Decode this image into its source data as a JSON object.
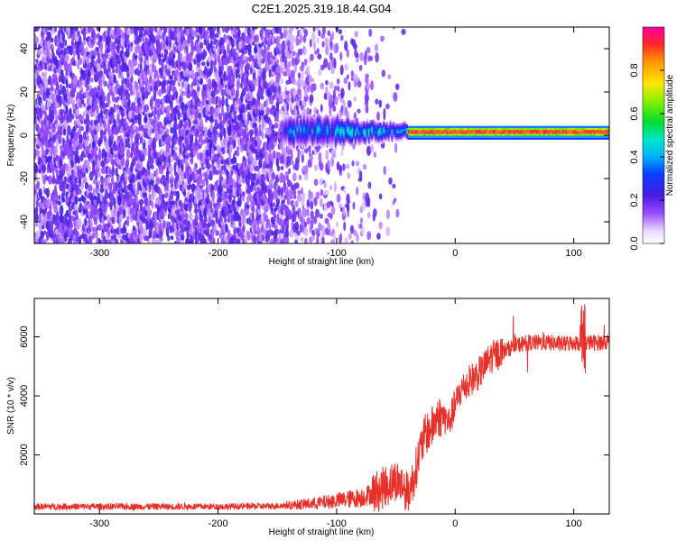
{
  "title": "C2E1.2025.319.18.44.G04",
  "chart_data": [
    {
      "type": "heatmap",
      "panel": "top",
      "xlabel": "Height of straight line (km)",
      "ylabel": "Frequency (Hz)",
      "xlim": [
        -355,
        130
      ],
      "ylim": [
        -50,
        50
      ],
      "xticks": [
        -300,
        -200,
        -100,
        0,
        100
      ],
      "yticks": [
        -40,
        -20,
        0,
        20,
        40
      ],
      "description_of_regions": [
        {
          "x_range": [
            -355,
            -140
          ],
          "pattern": "broadband noise, blue-violet, all frequencies",
          "amplitude": [
            0.05,
            0.3
          ]
        },
        {
          "x_range": [
            -140,
            -50
          ],
          "pattern": "noise fading, signal band near 0 Hz emerging",
          "amplitude": [
            0.05,
            0.45
          ]
        },
        {
          "x_range": [
            -50,
            130
          ],
          "pattern": "narrow carrier line near 0-2 Hz",
          "amplitude": [
            0.5,
            0.95
          ]
        }
      ],
      "colorbar": {
        "label": "Normalized spectral amplitude",
        "range": [
          0,
          1
        ],
        "ticks": [
          0.0,
          0.2,
          0.4,
          0.6,
          0.8
        ]
      }
    },
    {
      "type": "line",
      "panel": "bottom",
      "xlabel": "Height of straight line (km)",
      "ylabel": "SNR (10 * v/v)",
      "xlim": [
        -355,
        130
      ],
      "ylim": [
        0,
        7300
      ],
      "xticks": [
        -300,
        -200,
        -100,
        0,
        100
      ],
      "yticks": [
        2000,
        4000,
        6000
      ],
      "color": "#e8302a",
      "series": [
        {
          "name": "SNR",
          "x": [
            -355,
            -300,
            -250,
            -200,
            -160,
            -140,
            -120,
            -100,
            -80,
            -70,
            -60,
            -50,
            -45,
            -40,
            -35,
            -30,
            -25,
            -20,
            -15,
            -10,
            -5,
            0,
            5,
            10,
            15,
            20,
            25,
            30,
            40,
            50,
            60,
            70,
            80,
            90,
            100,
            110,
            120,
            130
          ],
          "y": [
            250,
            250,
            250,
            250,
            260,
            300,
            350,
            450,
            550,
            700,
            900,
            1150,
            1000,
            700,
            1200,
            2100,
            2700,
            2900,
            3300,
            3300,
            3100,
            3700,
            4200,
            4400,
            4600,
            4750,
            5000,
            5300,
            5500,
            5700,
            5800,
            5800,
            5800,
            5750,
            5800,
            5800,
            5800,
            5850
          ]
        }
      ]
    }
  ],
  "colors": {
    "signal": "#e8302a",
    "background": "#ffffff"
  }
}
